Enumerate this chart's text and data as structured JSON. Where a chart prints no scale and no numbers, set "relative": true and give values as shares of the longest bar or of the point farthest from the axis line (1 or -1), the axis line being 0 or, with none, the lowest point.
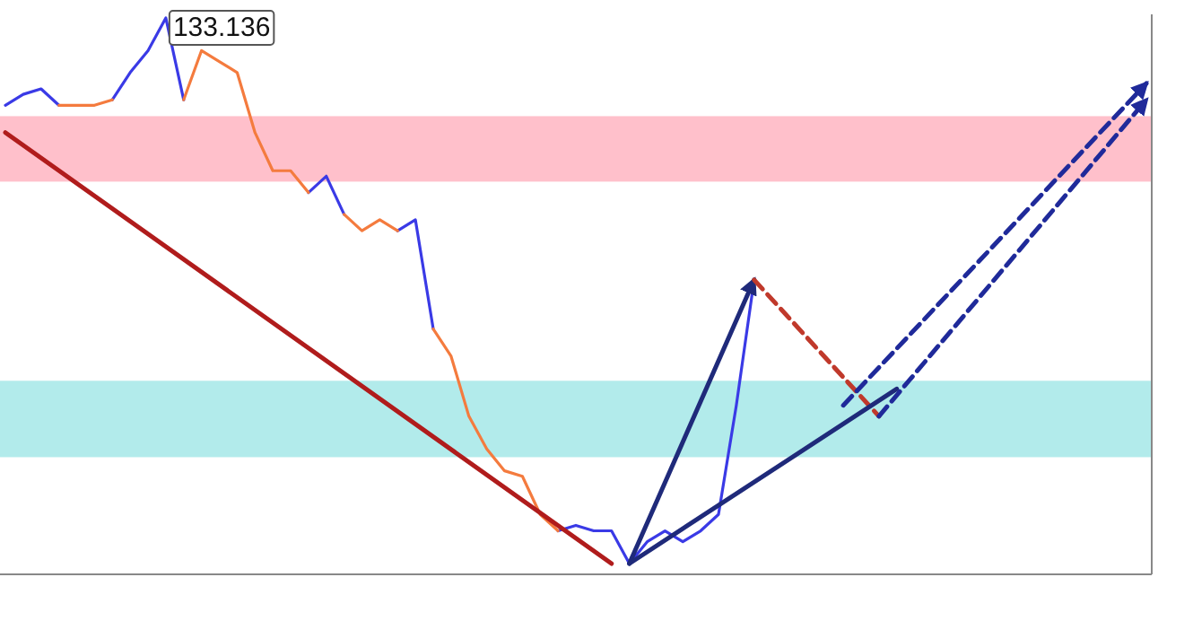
{
  "chart_data": {
    "type": "line",
    "relative": true,
    "tick_labels": false,
    "marker": "none",
    "categories": [
      null,
      null,
      null,
      null,
      null,
      null,
      null,
      null,
      null,
      null,
      null,
      null,
      null,
      null,
      null,
      null,
      null,
      null,
      null,
      null,
      null,
      null,
      null,
      null,
      null,
      null,
      null,
      null,
      null,
      null,
      null,
      null,
      null,
      null,
      null,
      null,
      null,
      null,
      null,
      null,
      null,
      null,
      null,
      null,
      null,
      null,
      null,
      null,
      null,
      null,
      null,
      null,
      null,
      null,
      null,
      null,
      null,
      null,
      null,
      null,
      null,
      null,
      null,
      null,
      null
    ],
    "bands": [
      {
        "axis": "y",
        "from": 0.7,
        "to": 0.82,
        "color": "#ffc0cb"
      },
      {
        "axis": "y",
        "from": 0.195,
        "to": 0.335,
        "color": "#b2ebeb"
      }
    ],
    "series": [
      {
        "color": "#3a3ae6",
        "line_style": "solid",
        "values": [
          0.84,
          0.86,
          0.87,
          0.84,
          null,
          null,
          0.85,
          0.9,
          0.94,
          1.0,
          0.85,
          null,
          null,
          null,
          null,
          null,
          null,
          0.68,
          0.71,
          0.64,
          null,
          null,
          0.61,
          0.63,
          0.43,
          null,
          null,
          null,
          null,
          null,
          null,
          0.06,
          0.07,
          0.06,
          0.06,
          0.0,
          0.04,
          0.06,
          0.04,
          0.06,
          0.09,
          0.29,
          0.52,
          null,
          null,
          null,
          null,
          null,
          null,
          null,
          null,
          null,
          null,
          null,
          null,
          null,
          null,
          null,
          null,
          null,
          null,
          null,
          null,
          null,
          null
        ]
      },
      {
        "color": "#f47b3e",
        "line_style": "solid",
        "values": [
          null,
          null,
          null,
          0.84,
          0.84,
          0.84,
          0.85,
          null,
          null,
          null,
          0.85,
          0.94,
          0.92,
          0.9,
          0.79,
          0.72,
          0.72,
          0.68,
          null,
          0.64,
          0.61,
          0.63,
          0.61,
          null,
          0.43,
          0.38,
          0.27,
          0.21,
          0.17,
          0.16,
          0.09,
          0.06,
          null,
          null,
          null,
          null,
          null,
          null,
          null,
          null,
          null,
          null,
          null,
          null,
          null,
          null,
          null,
          null,
          null,
          null,
          null,
          null,
          null,
          null,
          null,
          null,
          null,
          null,
          null,
          null,
          null,
          null,
          null,
          null,
          null
        ]
      },
      {
        "color": "#b01c1c",
        "line_style": "solid",
        "values": [
          0.79,
          null,
          null,
          null,
          null,
          null,
          null,
          null,
          null,
          null,
          null,
          null,
          null,
          null,
          null,
          null,
          null,
          null,
          null,
          null,
          null,
          null,
          null,
          null,
          null,
          null,
          null,
          null,
          null,
          null,
          null,
          null,
          null,
          null,
          0.0,
          null,
          null,
          null,
          null,
          null,
          null,
          null,
          null,
          null,
          null,
          null,
          null,
          null,
          null,
          null,
          null,
          null,
          null,
          null,
          null,
          null,
          null,
          null,
          null,
          null,
          null,
          null,
          null,
          null,
          null
        ]
      },
      {
        "color": "#1f2a7a",
        "line_style": "solid",
        "values": [
          null,
          null,
          null,
          null,
          null,
          null,
          null,
          null,
          null,
          null,
          null,
          null,
          null,
          null,
          null,
          null,
          null,
          null,
          null,
          null,
          null,
          null,
          null,
          null,
          null,
          null,
          null,
          null,
          null,
          null,
          null,
          null,
          null,
          null,
          null,
          0.0,
          null,
          null,
          null,
          null,
          null,
          null,
          0.52,
          null,
          null,
          null,
          null,
          null,
          null,
          null,
          null,
          null,
          null,
          null,
          null,
          null,
          null,
          null,
          null,
          null,
          null,
          null,
          null,
          null,
          null
        ]
      },
      {
        "color": "#c0392b",
        "line_style": "dashed",
        "values": [
          null,
          null,
          null,
          null,
          null,
          null,
          null,
          null,
          null,
          null,
          null,
          null,
          null,
          null,
          null,
          null,
          null,
          null,
          null,
          null,
          null,
          null,
          null,
          null,
          null,
          null,
          null,
          null,
          null,
          null,
          null,
          null,
          null,
          null,
          null,
          null,
          null,
          null,
          null,
          null,
          null,
          null,
          0.52,
          null,
          null,
          null,
          null,
          null,
          null,
          0.27,
          null,
          null,
          null,
          null,
          null,
          null,
          null,
          null,
          null,
          null,
          null,
          null,
          null,
          null,
          null
        ]
      },
      {
        "color": "#1f2a7a",
        "line_style": "solid",
        "values": [
          null,
          null,
          null,
          null,
          null,
          null,
          null,
          null,
          null,
          null,
          null,
          null,
          null,
          null,
          null,
          null,
          null,
          null,
          null,
          null,
          null,
          null,
          null,
          null,
          null,
          null,
          null,
          null,
          null,
          null,
          null,
          null,
          null,
          null,
          null,
          0.0,
          null,
          null,
          null,
          null,
          null,
          null,
          null,
          null,
          null,
          null,
          null,
          null,
          null,
          null,
          0.32,
          null,
          null,
          null,
          null,
          null,
          null,
          null,
          null,
          null,
          null,
          null,
          null,
          null,
          null
        ]
      },
      {
        "color": "#1f2a9a",
        "line_style": "dashed",
        "values": [
          null,
          null,
          null,
          null,
          null,
          null,
          null,
          null,
          null,
          null,
          null,
          null,
          null,
          null,
          null,
          null,
          null,
          null,
          null,
          null,
          null,
          null,
          null,
          null,
          null,
          null,
          null,
          null,
          null,
          null,
          null,
          null,
          null,
          null,
          null,
          null,
          null,
          null,
          null,
          null,
          null,
          null,
          null,
          null,
          null,
          null,
          null,
          0.29,
          null,
          null,
          null,
          null,
          null,
          null,
          null,
          null,
          null,
          null,
          null,
          null,
          null,
          null,
          null,
          null,
          0.88
        ]
      },
      {
        "color": "#1f2a9a",
        "line_style": "dashed",
        "values": [
          null,
          null,
          null,
          null,
          null,
          null,
          null,
          null,
          null,
          null,
          null,
          null,
          null,
          null,
          null,
          null,
          null,
          null,
          null,
          null,
          null,
          null,
          null,
          null,
          null,
          null,
          null,
          null,
          null,
          null,
          null,
          null,
          null,
          null,
          null,
          null,
          null,
          null,
          null,
          null,
          null,
          null,
          null,
          null,
          null,
          null,
          null,
          null,
          null,
          0.27,
          null,
          null,
          null,
          null,
          null,
          null,
          null,
          null,
          null,
          null,
          null,
          null,
          null,
          null,
          0.85
        ]
      }
    ],
    "annotations": [
      "133.136"
    ]
  }
}
